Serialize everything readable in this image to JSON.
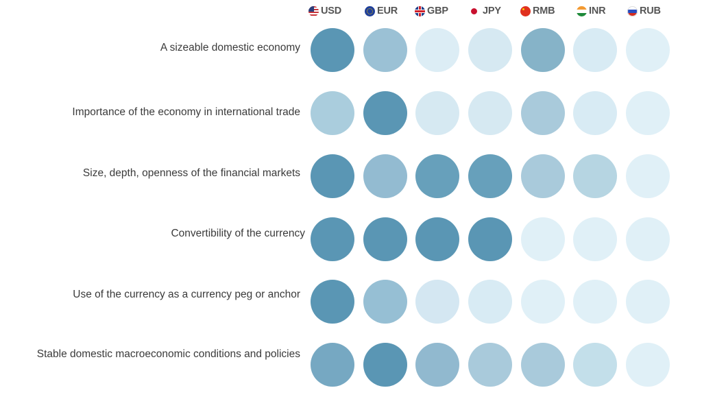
{
  "header": {
    "currencies": [
      {
        "code": "USD",
        "flag": "us-flag-icon"
      },
      {
        "code": "EUR",
        "flag": "eu-flag-icon"
      },
      {
        "code": "GBP",
        "flag": "uk-flag-icon"
      },
      {
        "code": "JPY",
        "flag": "japan-flag-icon"
      },
      {
        "code": "RMB",
        "flag": "china-flag-icon"
      },
      {
        "code": "INR",
        "flag": "india-flag-icon"
      },
      {
        "code": "RUB",
        "flag": "russia-flag-icon"
      }
    ]
  },
  "rows": [
    {
      "label": "A sizeable domestic economy"
    },
    {
      "label": "Importance of the economy in international trade"
    },
    {
      "label": "Size, depth, openness of the financial markets"
    },
    {
      "label": "Convertibility of the currency"
    },
    {
      "label": "Use of the currency as a currency peg or anchor"
    },
    {
      "label": "Stable domestic macroeconomic conditions and policies"
    }
  ],
  "colors": {
    "scale": [
      "#e0f0f7",
      "#d6e9f2",
      "#b6d5e2",
      "#a9cadb",
      "#95bdd2",
      "#8ab4ca",
      "#76a8c2",
      "#67a0bb",
      "#5a96b4"
    ]
  },
  "chart_data": {
    "type": "heatmap",
    "title": "",
    "xlabel": "",
    "ylabel": "",
    "categories": [
      "USD",
      "EUR",
      "GBP",
      "JPY",
      "RMB",
      "INR",
      "RUB"
    ],
    "rows": [
      "A sizeable domestic economy",
      "Importance of the economy in international trade",
      "Size, depth, openness of the financial markets",
      "Convertibility of the currency",
      "Use of the currency as a currency peg or anchor",
      "Stable domestic macroeconomic conditions and policies"
    ],
    "value_scale": "intensity 0 (lightest) to 8 (darkest)",
    "values": [
      [
        8,
        4,
        1,
        1,
        5,
        1,
        0
      ],
      [
        3,
        8,
        1,
        1,
        3,
        1,
        0
      ],
      [
        8,
        4,
        7,
        7,
        3,
        2,
        0
      ],
      [
        8,
        8,
        8,
        8,
        0,
        0,
        0
      ],
      [
        8,
        4,
        1,
        1,
        0,
        0,
        0
      ],
      [
        6,
        8,
        4,
        3,
        3,
        2,
        0
      ]
    ],
    "colors": [
      [
        "#5a96b4",
        "#9bc1d5",
        "#dcedf5",
        "#d6e9f2",
        "#86b3c8",
        "#d8ebf4",
        "#e0f0f7"
      ],
      [
        "#aacddd",
        "#5a96b4",
        "#d6e9f2",
        "#d6e9f2",
        "#a9cadb",
        "#d8ebf4",
        "#e0f0f7"
      ],
      [
        "#5a96b4",
        "#93bbd1",
        "#67a0bb",
        "#67a0bb",
        "#a9cadb",
        "#b6d5e2",
        "#e0f0f7"
      ],
      [
        "#5a96b4",
        "#5a96b4",
        "#5a96b4",
        "#5a96b4",
        "#e0f0f7",
        "#e0f0f7",
        "#e0f0f7"
      ],
      [
        "#5a96b4",
        "#96bfd4",
        "#d4e7f2",
        "#d8ebf4",
        "#e0f0f7",
        "#e0f0f7",
        "#e0f0f7"
      ],
      [
        "#76a8c2",
        "#5a96b4",
        "#91b9cf",
        "#a9cadb",
        "#a9cadb",
        "#c3dfea",
        "#e0f0f7"
      ]
    ],
    "legend": "none",
    "grid": false
  }
}
